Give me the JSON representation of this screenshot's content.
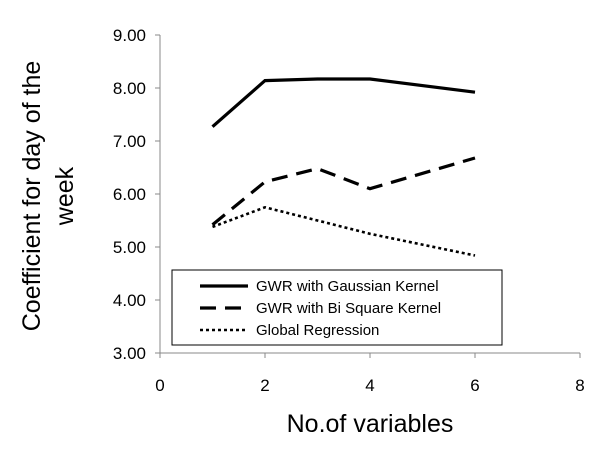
{
  "chart_data": {
    "type": "line",
    "xlabel": "No.of variables",
    "ylabel": [
      "Coefficient for day of the",
      "week"
    ],
    "xlim": [
      0,
      8
    ],
    "ylim": [
      3.0,
      9.0
    ],
    "x_ticks": [
      0,
      2,
      4,
      6,
      8
    ],
    "x_tick_labels": [
      "0",
      "2",
      "4",
      "6",
      "8"
    ],
    "y_ticks": [
      3,
      4,
      5,
      6,
      7,
      8,
      9
    ],
    "y_tick_labels": [
      "3.00",
      "4.00",
      "5.00",
      "6.00",
      "7.00",
      "8.00",
      "9.00"
    ],
    "grid": false,
    "legend_position": "bottom-left inside",
    "series": [
      {
        "name": "GWR with Gaussian Kernel",
        "style": "solid",
        "color": "#000000",
        "x": [
          1,
          2,
          3,
          4,
          6
        ],
        "y": [
          7.27,
          8.14,
          8.17,
          8.17,
          7.92
        ]
      },
      {
        "name": "GWR with Bi Square Kernel",
        "style": "dashed",
        "color": "#000000",
        "x": [
          1,
          2,
          3,
          4,
          6
        ],
        "y": [
          5.42,
          6.23,
          6.48,
          6.1,
          6.68
        ]
      },
      {
        "name": "Global Regression",
        "style": "dotted",
        "color": "#000000",
        "x": [
          1,
          2,
          3,
          4,
          6
        ],
        "y": [
          5.38,
          5.75,
          5.5,
          5.25,
          4.84
        ]
      }
    ]
  }
}
